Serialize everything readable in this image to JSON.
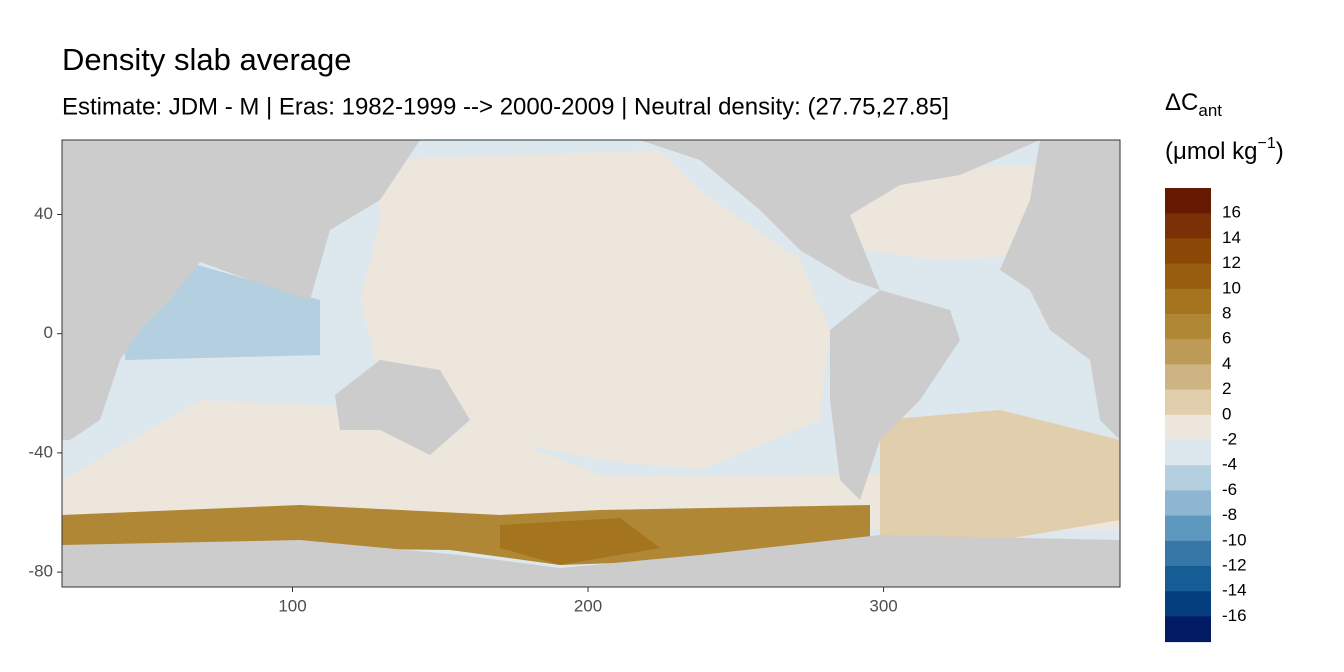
{
  "chart_data": {
    "type": "map",
    "title": "Density slab average",
    "subtitle": "Estimate: JDM - M | Eras: 1982-1999 --> 2000-2009 | Neutral density: (27.75,27.85]",
    "xlim": [
      22,
      380
    ],
    "ylim": [
      -85,
      65
    ],
    "xticks": [
      100,
      200,
      300
    ],
    "yticks": [
      40,
      0,
      -40,
      -80
    ],
    "legend": {
      "title_main": "ΔC",
      "title_sub": "ant",
      "unit_open": "(μmol kg",
      "unit_sup": "−1",
      "unit_close": ")",
      "breaks": [
        16,
        14,
        12,
        10,
        8,
        6,
        4,
        2,
        0,
        -2,
        -4,
        -6,
        -8,
        -10,
        -12,
        -14,
        -16
      ],
      "colors": [
        "#661a02",
        "#7c3007",
        "#8b4706",
        "#985d0e",
        "#a4741f",
        "#b08735",
        "#bd9b57",
        "#cdb482",
        "#e0ceac",
        "#ece6dc",
        "#dde7ee",
        "#b3cfe0",
        "#8fb6d2",
        "#5f98bf",
        "#3777a8",
        "#165d95",
        "#053f7f",
        "#021a63"
      ]
    }
  }
}
